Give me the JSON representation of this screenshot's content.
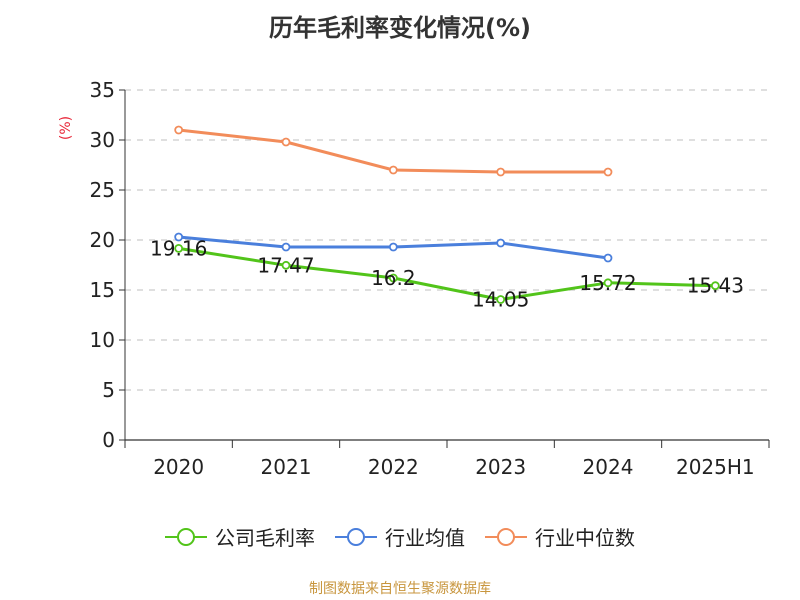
{
  "chart_data": {
    "type": "line",
    "title": "历年毛利率变化情况(%)",
    "ylabel": "(%)",
    "xlabel": "",
    "categories": [
      "2020",
      "2021",
      "2022",
      "2023",
      "2024",
      "2025H1"
    ],
    "ylim": [
      0,
      35
    ],
    "yticks": [
      0,
      5,
      10,
      15,
      20,
      25,
      30,
      35
    ],
    "grid": true,
    "legend_position": "bottom",
    "series": [
      {
        "name": "公司毛利率",
        "color": "#52c41a",
        "values": [
          19.16,
          17.47,
          16.2,
          14.05,
          15.72,
          15.43
        ],
        "labels": [
          "19.16",
          "17.47",
          "16.2",
          "14.05",
          "15.72",
          "15.43"
        ]
      },
      {
        "name": "行业均值",
        "color": "#4a7fdc",
        "values": [
          20.3,
          19.3,
          19.3,
          19.7,
          18.2,
          null
        ]
      },
      {
        "name": "行业中位数",
        "color": "#f28c5a",
        "values": [
          31.0,
          29.8,
          27.0,
          26.8,
          26.8,
          null
        ]
      }
    ]
  },
  "footer": {
    "source": "制图数据来自恒生聚源数据库"
  }
}
